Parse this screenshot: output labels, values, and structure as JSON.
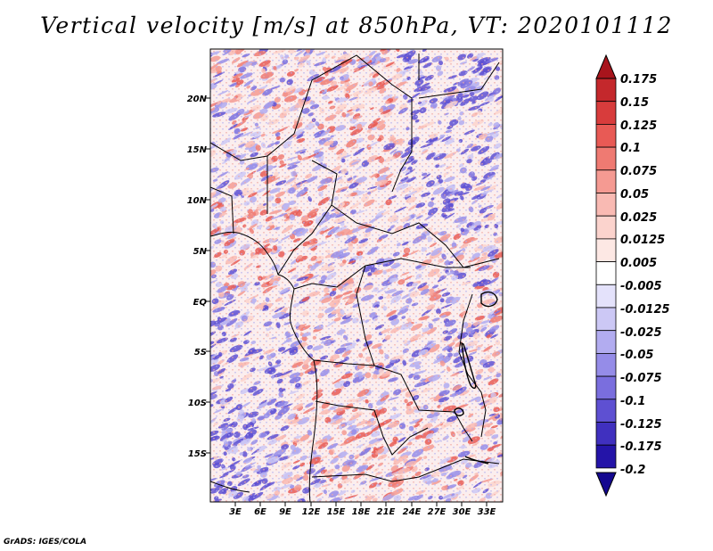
{
  "title": "Vertical velocity [m/s] at 850hPa, VT: 2020101112",
  "credit": "GrADS: IGES/COLA",
  "axes": {
    "lat_labels": [
      "20N",
      "15N",
      "10N",
      "5N",
      "EQ",
      "5S",
      "10S",
      "15S"
    ],
    "lon_labels": [
      "3E",
      "6E",
      "9E",
      "12E",
      "15E",
      "18E",
      "21E",
      "24E",
      "27E",
      "30E",
      "33E"
    ]
  },
  "colorbar": {
    "labels": [
      "0.175",
      "0.15",
      "0.125",
      "0.1",
      "0.075",
      "0.05",
      "0.025",
      "0.0125",
      "0.005",
      "-0.005",
      "-0.0125",
      "-0.025",
      "-0.05",
      "-0.075",
      "-0.1",
      "-0.125",
      "-0.175",
      "-0.2"
    ],
    "colors": [
      "#a8141c",
      "#c4282c",
      "#d83c3c",
      "#e85a55",
      "#ef7a72",
      "#f59a92",
      "#f9bab3",
      "#fbd3cd",
      "#fde8e4",
      "#ffffff",
      "#e4e2fb",
      "#ccc8f5",
      "#b2acf0",
      "#958ce8",
      "#7a6ede",
      "#5e50d2",
      "#4030bf",
      "#2414a8",
      "#140890"
    ]
  }
}
